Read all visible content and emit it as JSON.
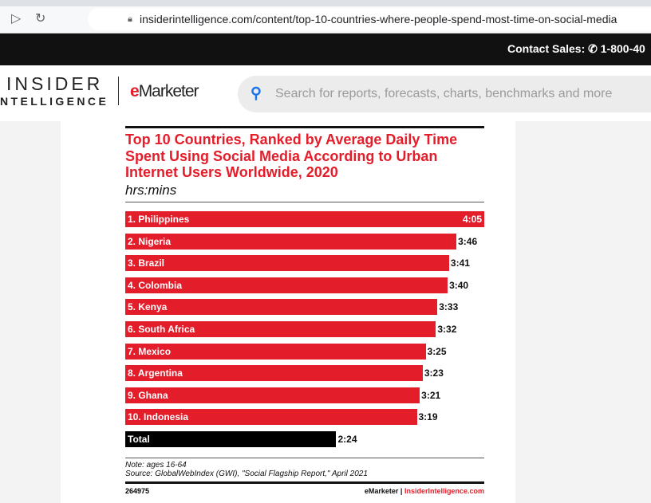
{
  "browser": {
    "url": "insiderintelligence.com/content/top-10-countries-where-people-spend-most-time-on-social-media"
  },
  "topbar": {
    "contact_label": "Contact Sales:",
    "phone": "1-800-40"
  },
  "header": {
    "logo_line1": "INSIDER",
    "logo_line2": "NTELLIGENCE",
    "brand": "Marketer",
    "brand_e": "e",
    "search_placeholder": "Search for reports, forecasts, charts, benchmarks and more"
  },
  "colors": {
    "accent": "#e41d2a",
    "total": "#000000"
  },
  "chart_data": {
    "type": "bar",
    "orientation": "horizontal",
    "title": "Top 10 Countries, Ranked by Average Daily Time Spent Using Social Media According to Urban Internet Users Worldwide, 2020",
    "unit": "hrs:mins",
    "categories": [
      "1. Philippines",
      "2. Nigeria",
      "3. Brazil",
      "4. Colombia",
      "5. Kenya",
      "6. South Africa",
      "7. Mexico",
      "8. Argentina",
      "9. Ghana",
      "10. Indonesia",
      "Total"
    ],
    "labels": [
      "4:05",
      "3:46",
      "3:41",
      "3:40",
      "3:33",
      "3:32",
      "3:25",
      "3:23",
      "3:21",
      "3:19",
      "2:24"
    ],
    "values_minutes": [
      245,
      226,
      221,
      220,
      213,
      212,
      205,
      203,
      201,
      199,
      144
    ],
    "xlim": [
      0,
      245
    ],
    "note": "Note: ages 16-64",
    "source": "Source: GlobalWebIndex (GWI), \"Social Flagship Report,\" April 2021",
    "chart_id": "264975",
    "footer_brand": "eMarketer",
    "footer_sep": "|",
    "footer_site": "InsiderIntelligence.com"
  }
}
